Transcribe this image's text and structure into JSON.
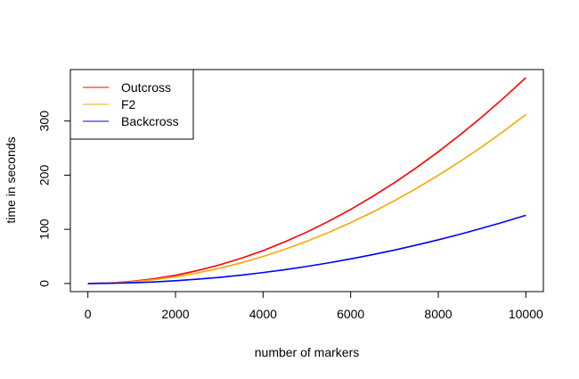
{
  "chart_data": {
    "type": "line",
    "title": "",
    "xlabel": "number of markers",
    "ylabel": "time in seconds",
    "xlim": [
      -400,
      10400
    ],
    "ylim": [
      -15,
      395
    ],
    "x_ticks": [
      0,
      2000,
      4000,
      6000,
      8000,
      10000
    ],
    "y_ticks": [
      0,
      100,
      200,
      300
    ],
    "x": [
      0,
      500,
      1000,
      1500,
      2000,
      2500,
      3000,
      3500,
      4000,
      4500,
      5000,
      5500,
      6000,
      6500,
      7000,
      7500,
      8000,
      8500,
      9000,
      9500,
      10000
    ],
    "series": [
      {
        "name": "Outcross",
        "color": "#ff0000",
        "values": [
          0,
          1,
          3.8,
          8.6,
          15.2,
          23.8,
          34.2,
          46.6,
          60.8,
          77,
          95,
          115,
          136.8,
          160.6,
          186.2,
          213.8,
          243.2,
          274.6,
          307.8,
          343,
          380
        ]
      },
      {
        "name": "F2",
        "color": "#ffa500",
        "values": [
          0,
          0.8,
          3.1,
          7,
          12.5,
          19.5,
          28.1,
          38.2,
          49.9,
          63.2,
          78,
          94.4,
          112.3,
          131.8,
          152.9,
          175.5,
          199.7,
          225.4,
          252.7,
          281.6,
          312
        ]
      },
      {
        "name": "Backcross",
        "color": "#0000ff",
        "values": [
          0,
          0.3,
          1.3,
          2.8,
          5,
          7.9,
          11.3,
          15.4,
          20.2,
          25.5,
          31.5,
          38.1,
          45.4,
          53.2,
          61.7,
          70.9,
          80.6,
          91,
          102.1,
          113.7,
          126
        ]
      }
    ],
    "grid": false,
    "legend": "top-left"
  }
}
